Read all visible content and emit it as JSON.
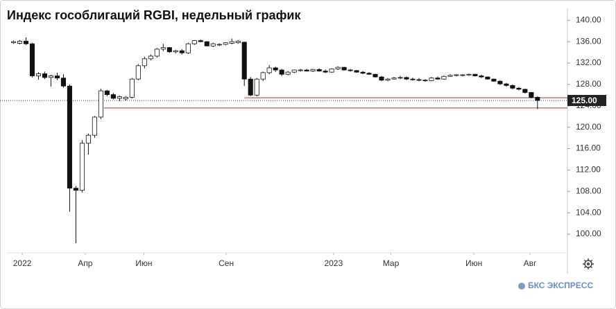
{
  "chart_data": {
    "type": "candlestick",
    "title": "Индекс гособлигаций RGBI, недельный график",
    "brand": "БКС ЭКСПРЕСС",
    "ohlc": [
      [
        135.8,
        136.2,
        135.6,
        136.0
      ],
      [
        135.7,
        136.3,
        135.5,
        136.1
      ],
      [
        136.1,
        136.8,
        135.4,
        135.6
      ],
      [
        135.6,
        135.8,
        129.3,
        129.6
      ],
      [
        129.6,
        130.3,
        128.9,
        130.0
      ],
      [
        130.0,
        130.4,
        129.0,
        129.3
      ],
      [
        129.3,
        129.8,
        127.6,
        129.6
      ],
      [
        129.6,
        130.2,
        128.8,
        129.2
      ],
      [
        129.2,
        129.9,
        127.4,
        127.7
      ],
      [
        127.7,
        128.0,
        104.2,
        108.6
      ],
      [
        108.6,
        109.0,
        98.3,
        108.2
      ],
      [
        108.2,
        117.6,
        107.8,
        117.0
      ],
      [
        117.0,
        118.8,
        114.9,
        118.5
      ],
      [
        118.5,
        122.1,
        118.0,
        121.9
      ],
      [
        121.9,
        127.2,
        121.5,
        126.8
      ],
      [
        126.8,
        127.0,
        125.8,
        126.1
      ],
      [
        126.1,
        126.4,
        125.2,
        125.4
      ],
      [
        125.4,
        125.9,
        124.9,
        125.7
      ],
      [
        125.3,
        125.8,
        125.0,
        125.6
      ],
      [
        125.6,
        129.2,
        125.4,
        129.0
      ],
      [
        129.0,
        131.8,
        128.8,
        131.5
      ],
      [
        131.5,
        133.2,
        131.0,
        132.8
      ],
      [
        132.8,
        133.6,
        132.5,
        133.3
      ],
      [
        133.3,
        134.8,
        133.0,
        134.6
      ],
      [
        134.6,
        135.6,
        134.2,
        134.9
      ],
      [
        134.9,
        135.0,
        133.9,
        134.1
      ],
      [
        134.1,
        134.5,
        133.8,
        134.3
      ],
      [
        134.3,
        134.6,
        133.6,
        133.9
      ],
      [
        133.9,
        135.8,
        133.7,
        135.6
      ],
      [
        135.6,
        136.3,
        135.4,
        136.2
      ],
      [
        136.2,
        136.4,
        135.9,
        136.0
      ],
      [
        136.0,
        136.1,
        135.1,
        135.2
      ],
      [
        135.2,
        135.8,
        135.0,
        135.6
      ],
      [
        135.4,
        135.7,
        135.2,
        135.5
      ],
      [
        135.5,
        135.9,
        135.3,
        135.8
      ],
      [
        135.7,
        136.6,
        135.5,
        136.0
      ],
      [
        135.8,
        136.3,
        135.6,
        136.1
      ],
      [
        135.9,
        136.0,
        127.7,
        129.0
      ],
      [
        129.0,
        129.4,
        125.8,
        126.0
      ],
      [
        126.0,
        129.2,
        125.8,
        129.0
      ],
      [
        129.0,
        130.4,
        128.6,
        130.2
      ],
      [
        130.2,
        131.6,
        129.9,
        131.1
      ],
      [
        131.1,
        131.3,
        130.3,
        130.7
      ],
      [
        130.7,
        130.9,
        129.6,
        129.9
      ],
      [
        129.9,
        130.5,
        129.7,
        130.3
      ],
      [
        130.3,
        130.8,
        130.1,
        130.7
      ],
      [
        130.6,
        130.9,
        130.4,
        130.7
      ],
      [
        130.7,
        130.9,
        130.4,
        130.5
      ],
      [
        130.5,
        130.9,
        130.3,
        130.8
      ],
      [
        130.8,
        131.0,
        130.4,
        130.5
      ],
      [
        130.5,
        130.8,
        130.1,
        130.3
      ],
      [
        130.3,
        131.0,
        130.2,
        130.9
      ],
      [
        130.9,
        131.4,
        130.7,
        131.2
      ],
      [
        131.2,
        131.3,
        130.6,
        130.7
      ],
      [
        130.7,
        130.9,
        130.4,
        130.6
      ],
      [
        130.6,
        130.7,
        130.2,
        130.3
      ],
      [
        130.3,
        130.5,
        129.9,
        130.1
      ],
      [
        130.1,
        130.3,
        129.8,
        129.9
      ],
      [
        129.9,
        130.0,
        129.3,
        129.4
      ],
      [
        129.4,
        129.6,
        128.6,
        128.8
      ],
      [
        128.8,
        129.2,
        128.6,
        129.0
      ],
      [
        129.0,
        129.4,
        128.9,
        129.2
      ],
      [
        129.2,
        129.6,
        129.0,
        129.3
      ],
      [
        129.3,
        129.5,
        128.8,
        129.0
      ],
      [
        129.0,
        129.3,
        128.7,
        128.9
      ],
      [
        128.9,
        129.2,
        128.6,
        128.8
      ],
      [
        128.8,
        129.0,
        128.5,
        128.7
      ],
      [
        128.7,
        129.4,
        128.6,
        129.2
      ],
      [
        129.2,
        129.5,
        128.9,
        129.0
      ],
      [
        129.0,
        129.7,
        128.9,
        129.5
      ],
      [
        129.5,
        129.9,
        129.4,
        129.7
      ],
      [
        129.7,
        129.9,
        129.5,
        129.8
      ],
      [
        129.7,
        129.9,
        129.5,
        129.8
      ],
      [
        129.8,
        130.0,
        129.6,
        129.9
      ],
      [
        129.9,
        130.0,
        129.5,
        129.6
      ],
      [
        129.6,
        129.8,
        129.2,
        129.4
      ],
      [
        129.4,
        129.5,
        128.9,
        129.0
      ],
      [
        129.0,
        129.1,
        128.5,
        128.6
      ],
      [
        128.6,
        128.8,
        127.9,
        128.1
      ],
      [
        128.1,
        128.3,
        127.6,
        127.8
      ],
      [
        127.8,
        128.0,
        127.1,
        127.3
      ],
      [
        127.3,
        127.5,
        126.9,
        127.1
      ],
      [
        127.1,
        127.2,
        126.3,
        126.5
      ],
      [
        126.5,
        126.6,
        125.4,
        125.6
      ],
      [
        125.6,
        125.8,
        123.4,
        125.0
      ]
    ],
    "xlim": [
      -0.5,
      88.8
    ],
    "xticks": [
      {
        "value": 1.4,
        "label": "2022"
      },
      {
        "value": 11.5,
        "label": "Апр"
      },
      {
        "value": 20.9,
        "label": "Июн"
      },
      {
        "value": 34.1,
        "label": "Сен"
      },
      {
        "value": 51.3,
        "label": "2023"
      },
      {
        "value": 60.5,
        "label": "Мар"
      },
      {
        "value": 73.8,
        "label": "Июн"
      },
      {
        "value": 82.8,
        "label": "Авг"
      }
    ],
    "ylim": [
      96.5,
      141.2
    ],
    "yticks": [
      {
        "value": 100,
        "label": "100.00"
      },
      {
        "value": 104,
        "label": "104.00"
      },
      {
        "value": 108,
        "label": "108.00"
      },
      {
        "value": 112,
        "label": "112.00"
      },
      {
        "value": 116,
        "label": "116.00"
      },
      {
        "value": 120,
        "label": "120.00"
      },
      {
        "value": 124,
        "label": "124.00"
      },
      {
        "value": 128,
        "label": "128.00"
      },
      {
        "value": 132,
        "label": "132.00"
      },
      {
        "value": 136,
        "label": "136.00"
      },
      {
        "value": 140,
        "label": "140.00"
      }
    ],
    "levels": [
      {
        "value": 125.5,
        "from_x": 37,
        "color": "#c62828"
      },
      {
        "value": 123.6,
        "from_x": 14.5,
        "color": "#c62828"
      }
    ],
    "last_price": {
      "value": 125,
      "label": "125.00"
    },
    "up_color": "#ffffff",
    "down_color": "#111111"
  }
}
